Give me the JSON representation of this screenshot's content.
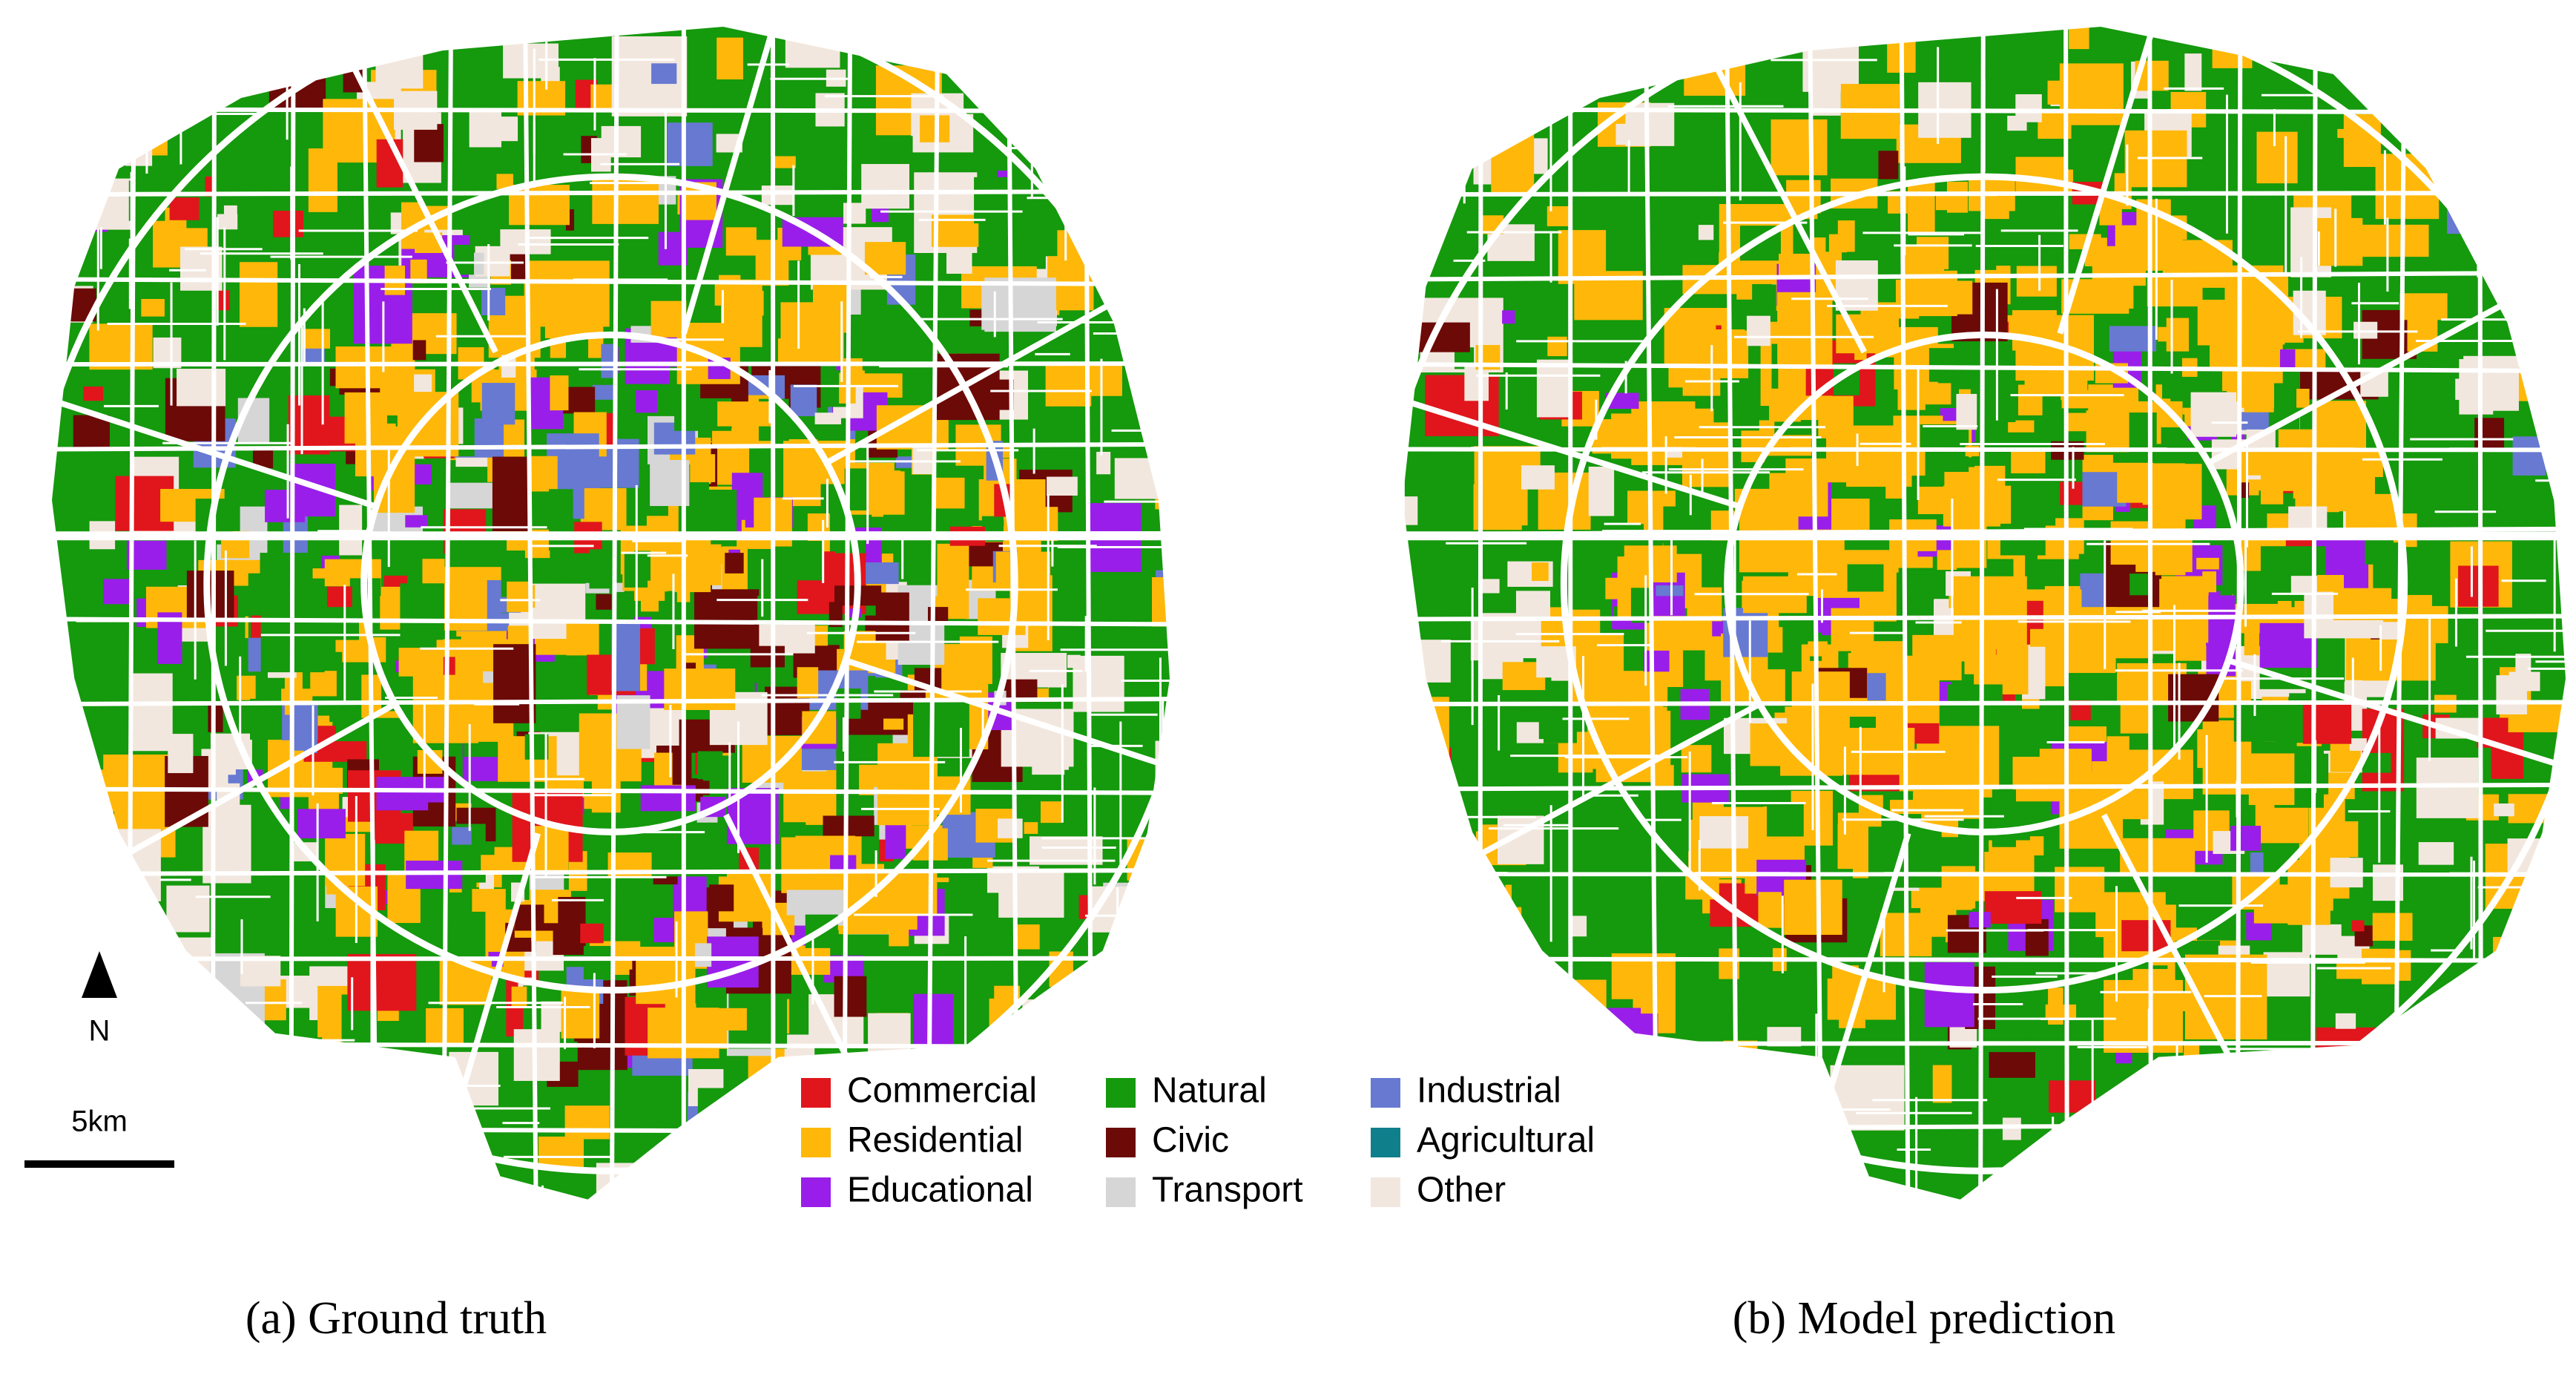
{
  "panels": [
    {
      "caption": "(a) Ground truth"
    },
    {
      "caption": "(b) Model prediction"
    }
  ],
  "north_label": "N",
  "scale_label": "5km",
  "legend": [
    {
      "name": "Commercial",
      "color": "#e0161c"
    },
    {
      "name": "Residential",
      "color": "#ffb809"
    },
    {
      "name": "Educational",
      "color": "#9a1ee9"
    },
    {
      "name": "Natural",
      "color": "#15990d"
    },
    {
      "name": "Civic",
      "color": "#6c0a07"
    },
    {
      "name": "Transport",
      "color": "#d6d6d6"
    },
    {
      "name": "Industrial",
      "color": "#6779d1"
    },
    {
      "name": "Agricultural",
      "color": "#107f8c"
    },
    {
      "name": "Other",
      "color": "#f2e7de"
    }
  ]
}
